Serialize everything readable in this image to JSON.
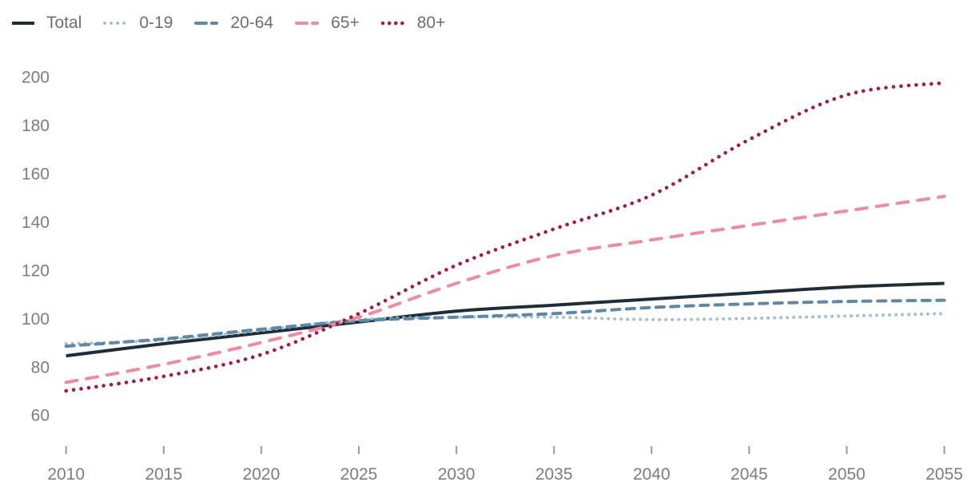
{
  "chart_data": {
    "type": "line",
    "title": "",
    "x": [
      2010,
      2015,
      2020,
      2025,
      2030,
      2035,
      2040,
      2045,
      2050,
      2055
    ],
    "series": [
      {
        "name": "Total",
        "color": "#1e2d3a",
        "line_style": "solid",
        "values": [
          84.5,
          89.5,
          94,
          98.5,
          103,
          105.5,
          108,
          110.5,
          113,
          114.5
        ]
      },
      {
        "name": "0-19",
        "color": "#a7bfd3",
        "line_style": "dotted",
        "values": [
          89.5,
          91,
          95,
          99.5,
          100.5,
          100.5,
          99.5,
          100,
          101,
          102
        ]
      },
      {
        "name": "20-64",
        "color": "#5d88a6",
        "line_style": "dashed",
        "values": [
          88.5,
          91.5,
          95.5,
          99,
          100.5,
          102,
          104.5,
          106,
          107,
          107.5
        ]
      },
      {
        "name": "65+",
        "color": "#ee8ba1",
        "line_style": "dashed",
        "values": [
          73.5,
          81,
          90,
          100.5,
          114.5,
          126,
          132.5,
          138.5,
          144.5,
          150.5
        ]
      },
      {
        "name": "80+",
        "color": "#a31d3d",
        "line_style": "dotted",
        "values": [
          70,
          76,
          85,
          102,
          122,
          137,
          151,
          174,
          192.5,
          197.5
        ]
      }
    ],
    "xlabel": "",
    "ylabel": "",
    "x_ticks": [
      2010,
      2015,
      2020,
      2025,
      2030,
      2035,
      2040,
      2045,
      2050,
      2055
    ],
    "y_ticks": [
      60,
      80,
      100,
      120,
      140,
      160,
      180,
      200
    ],
    "xlim": [
      2010,
      2055
    ],
    "ylim": [
      60,
      200
    ],
    "grid": false,
    "legend_position": "top-left",
    "axis_text_color": "#7d7d7d",
    "legend_text_color": "#6e6e6e",
    "background_color": "#ffffff"
  }
}
